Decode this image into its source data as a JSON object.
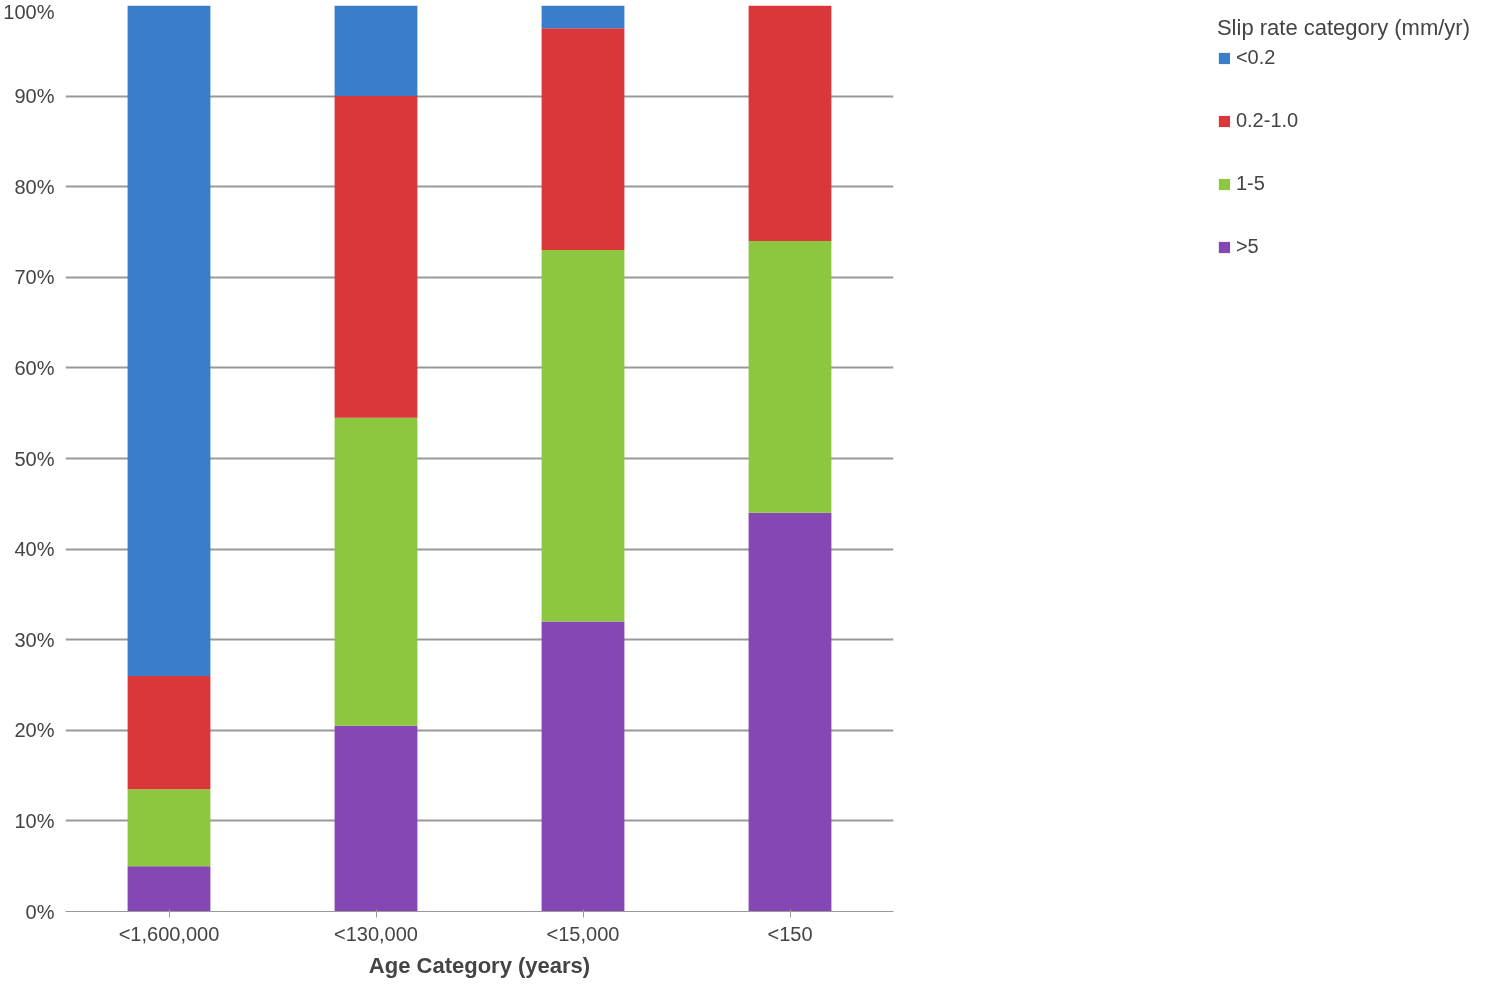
{
  "chart_data": {
    "type": "bar",
    "stacked": true,
    "xlabel": "Age Category (years)",
    "legend_title": "Slip rate category (mm/yr)",
    "legend": "right",
    "grid": "y",
    "categories": [
      "<1,600,000",
      "<130,000",
      "<15,000",
      "<150"
    ],
    "ylim": [
      0,
      100
    ],
    "yticks": [
      {
        "value": 0,
        "label": "0%"
      },
      {
        "value": 10,
        "label": "10%"
      },
      {
        "value": 20,
        "label": "20%"
      },
      {
        "value": 30,
        "label": "30%"
      },
      {
        "value": 40,
        "label": "40%"
      },
      {
        "value": 50,
        "label": "50%"
      },
      {
        "value": 60,
        "label": "60%"
      },
      {
        "value": 70,
        "label": "70%"
      },
      {
        "value": 80,
        "label": "80%"
      },
      {
        "value": 90,
        "label": "90%"
      },
      {
        "value": 100,
        "label": "100%"
      }
    ],
    "series": [
      {
        "name": ">5",
        "color": "#8447b4",
        "values": [
          5,
          20.5,
          32,
          44
        ]
      },
      {
        "name": "1-5",
        "color": "#8dc63f",
        "values": [
          8.5,
          34,
          41,
          30
        ]
      },
      {
        "name": "0.2-1.0",
        "color": "#d9373a",
        "values": [
          12.5,
          35.5,
          24.5,
          26
        ]
      },
      {
        "name": "<0.2",
        "color": "#3a7dc9",
        "values": [
          74,
          10,
          2.5,
          0
        ]
      }
    ]
  }
}
